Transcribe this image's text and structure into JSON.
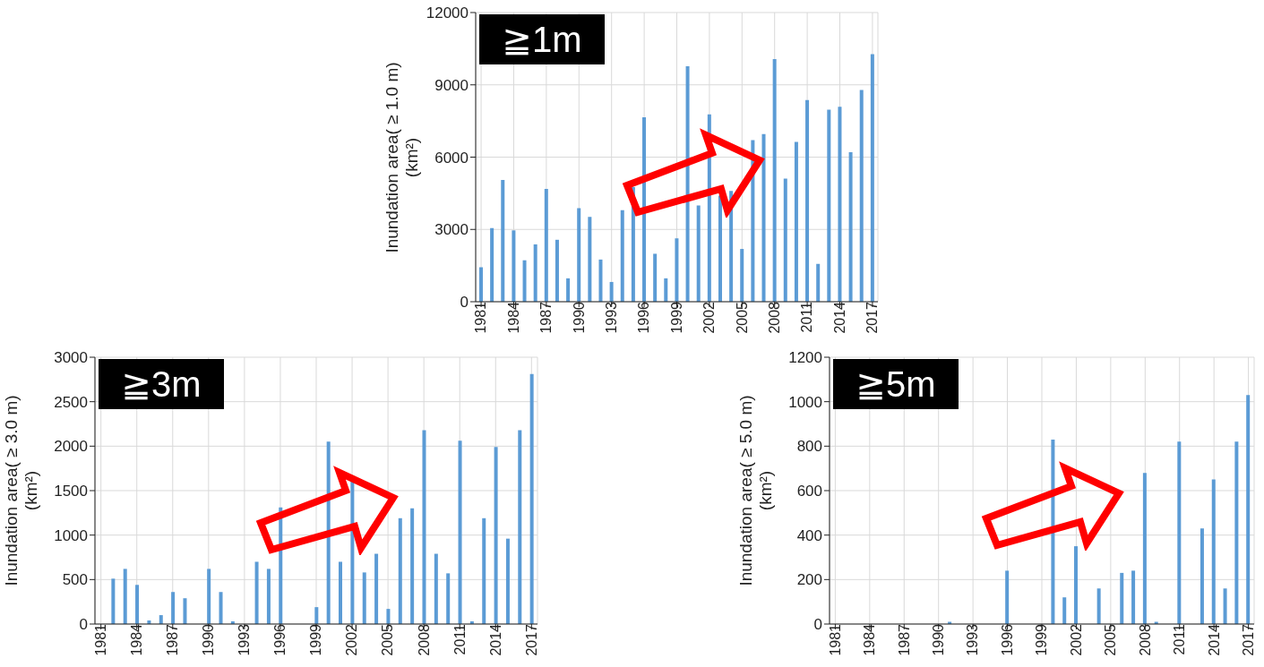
{
  "chart_data": [
    {
      "type": "bar",
      "categories": [
        "1981",
        null,
        null,
        "1984",
        null,
        null,
        "1987",
        null,
        null,
        "1990",
        null,
        null,
        "1993",
        null,
        null,
        "1996",
        null,
        null,
        "1999",
        null,
        null,
        "2002",
        null,
        null,
        "2005",
        null,
        null,
        "2008",
        null,
        null,
        "2011",
        null,
        null,
        "2014",
        null,
        null,
        "2017"
      ],
      "values": [
        1430,
        3060,
        5050,
        2960,
        1720,
        2380,
        4680,
        2570,
        970,
        3880,
        3520,
        1750,
        820,
        3800,
        4760,
        7650,
        1990,
        970,
        2630,
        9770,
        3990,
        7770,
        4400,
        4600,
        2190,
        6710,
        6960,
        10070,
        5110,
        6630,
        8370,
        1570,
        7970,
        8090,
        6200,
        8790,
        10270
      ],
      "color": "#5b9bd5",
      "ylabel": "Inundation area( ≥ 1.0 m)\n(km²)",
      "ylim": [
        0,
        12000
      ],
      "yticks": [
        0,
        3000,
        6000,
        9000,
        12000
      ],
      "grid": true,
      "annotations": [
        "≧1m"
      ]
    },
    {
      "type": "bar",
      "categories": [
        "1981",
        null,
        null,
        "1984",
        null,
        null,
        "1987",
        null,
        null,
        "1990",
        null,
        null,
        "1993",
        null,
        null,
        "1996",
        null,
        null,
        "1999",
        null,
        null,
        "2002",
        null,
        null,
        "2005",
        null,
        null,
        "2008",
        null,
        null,
        "2011",
        null,
        null,
        "2014",
        null,
        null,
        "2017"
      ],
      "values": [
        0,
        510,
        620,
        440,
        40,
        100,
        360,
        290,
        0,
        620,
        360,
        30,
        0,
        700,
        620,
        1310,
        0,
        0,
        190,
        2050,
        700,
        1600,
        580,
        790,
        170,
        1190,
        1300,
        2180,
        790,
        570,
        2060,
        30,
        1190,
        1990,
        960,
        2180,
        2810
      ],
      "color": "#5b9bd5",
      "ylabel": "Inundation area( ≥ 3.0 m)\n(km²)",
      "ylim": [
        0,
        3000
      ],
      "yticks": [
        0,
        500,
        1000,
        1500,
        2000,
        2500,
        3000
      ],
      "grid": true,
      "annotations": [
        "≧3m"
      ]
    },
    {
      "type": "bar",
      "categories": [
        "1981",
        null,
        null,
        "1984",
        null,
        null,
        "1987",
        null,
        null,
        "1990",
        null,
        null,
        "1993",
        null,
        null,
        "1996",
        null,
        null,
        "1999",
        null,
        null,
        "2002",
        null,
        null,
        "2005",
        null,
        null,
        "2008",
        null,
        null,
        "2011",
        null,
        null,
        "2014",
        null,
        null,
        "2017"
      ],
      "values": [
        0,
        0,
        0,
        0,
        0,
        0,
        0,
        0,
        0,
        0,
        10,
        0,
        0,
        0,
        0,
        240,
        0,
        0,
        0,
        830,
        120,
        350,
        0,
        160,
        0,
        230,
        240,
        680,
        10,
        0,
        820,
        0,
        430,
        650,
        160,
        820,
        1030
      ],
      "color": "#5b9bd5",
      "ylabel": "Inundation area( ≥ 5.0 m)\n(km²)",
      "ylim": [
        0,
        1200
      ],
      "yticks": [
        0,
        200,
        400,
        600,
        800,
        1000,
        1200
      ],
      "grid": true,
      "annotations": [
        "≧5m"
      ]
    }
  ]
}
